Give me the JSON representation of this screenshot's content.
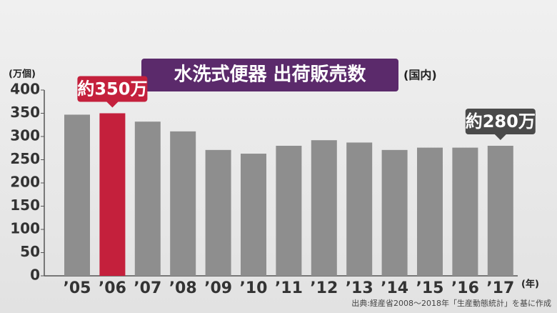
{
  "chart_data": {
    "type": "bar",
    "title": "水洗式便器 出荷販売数",
    "subtitle": "(国内)",
    "y_unit": "(万個)",
    "x_unit": "(年)",
    "source": "出典:経産省2008～2018年「生産動態統計」を基に作成",
    "categories": [
      "’05",
      "’06",
      "’07",
      "’08",
      "’09",
      "’10",
      "’11",
      "’12",
      "’13",
      "’14",
      "’15",
      "’16",
      "’17"
    ],
    "values": [
      347,
      350,
      332,
      311,
      271,
      263,
      280,
      292,
      287,
      271,
      276,
      276,
      280
    ],
    "color": "#8e8e8e",
    "highlight": "’06",
    "highlight_color": "#c4203c",
    "annotations": [
      {
        "category": "’06",
        "text": "約350万",
        "color": "#c4203c"
      },
      {
        "category": "’17",
        "text": "約280万",
        "color": "#4a4a4a"
      }
    ],
    "ylim": [
      0,
      400
    ],
    "yticks": [
      0,
      50,
      100,
      150,
      200,
      250,
      300,
      350,
      400
    ],
    "grid": false
  }
}
